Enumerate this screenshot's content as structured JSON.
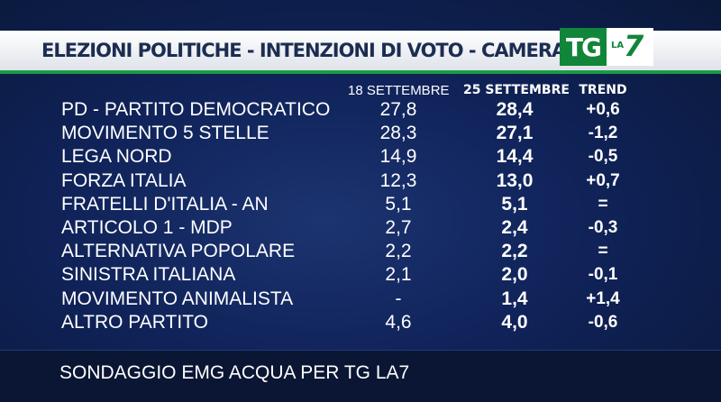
{
  "header": {
    "title": "ELEZIONI POLITICHE - INTENZIONI DI VOTO - CAMERA",
    "logo_tg": "TG",
    "logo_la": "LA",
    "logo_7": "7"
  },
  "chart_data": {
    "type": "table",
    "columns": [
      "18 SETTEMBRE",
      "25 SETTEMBRE",
      "TREND"
    ],
    "rows": [
      {
        "party": "PD - PARTITO DEMOCRATICO",
        "sept18": "27,8",
        "sept25": "28,4",
        "trend": "+0,6"
      },
      {
        "party": "MOVIMENTO 5 STELLE",
        "sept18": "28,3",
        "sept25": "27,1",
        "trend": "-1,2"
      },
      {
        "party": "LEGA NORD",
        "sept18": "14,9",
        "sept25": "14,4",
        "trend": "-0,5"
      },
      {
        "party": "FORZA ITALIA",
        "sept18": "12,3",
        "sept25": "13,0",
        "trend": "+0,7"
      },
      {
        "party": "FRATELLI D'ITALIA - AN",
        "sept18": "5,1",
        "sept25": "5,1",
        "trend": "="
      },
      {
        "party": "ARTICOLO 1 - MDP",
        "sept18": "2,7",
        "sept25": "2,4",
        "trend": "-0,3"
      },
      {
        "party": "ALTERNATIVA POPOLARE",
        "sept18": "2,2",
        "sept25": "2,2",
        "trend": "="
      },
      {
        "party": "SINISTRA ITALIANA",
        "sept18": "2,1",
        "sept25": "2,0",
        "trend": "-0,1"
      },
      {
        "party": "MOVIMENTO ANIMALISTA",
        "sept18": "-",
        "sept25": "1,4",
        "trend": "+1,4"
      },
      {
        "party": "ALTRO PARTITO",
        "sept18": "4,6",
        "sept25": "4,0",
        "trend": "-0,6"
      }
    ]
  },
  "footer": {
    "source": "SONDAGGIO EMG ACQUA PER TG LA7"
  },
  "colors": {
    "background": "#10235a",
    "accent_green": "#1b9a43",
    "title_text": "#1c2d52"
  }
}
